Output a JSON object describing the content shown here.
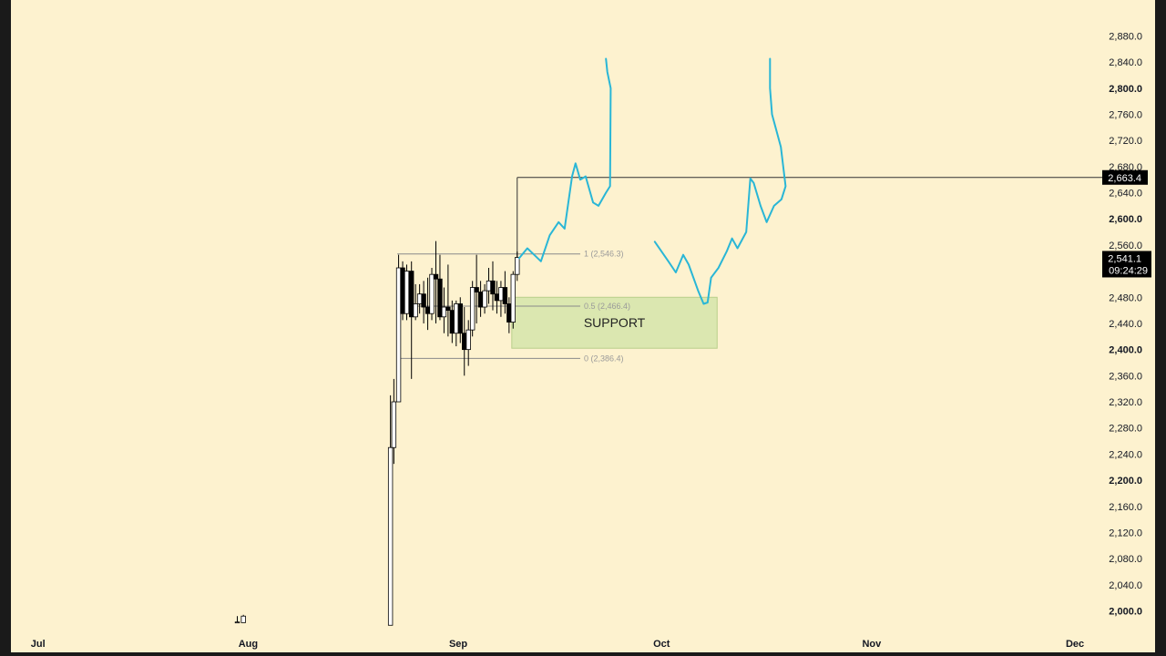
{
  "theme": {
    "frame": "#1a1a1a",
    "background": "#fdf2cf",
    "bull_fill": "#ffffff",
    "bear_fill": "#000000",
    "candle_stroke": "#000000",
    "projection": "#29b6d6",
    "support_fill": "#cfe3a6",
    "fib_line": "#8a8a8a",
    "fib_text": "#9a9a9a",
    "price_tag_bg": "#000000",
    "price_tag_text": "#ffffff"
  },
  "chart_data": {
    "type": "candlestick",
    "instrument_unit": "price",
    "y_range": [
      1970,
      2935
    ],
    "x_range_days": [
      0,
      164
    ],
    "x_axis": {
      "start_date": "2024-06-27",
      "ticks": [
        {
          "label": "Jul",
          "day": 4
        },
        {
          "label": "Aug",
          "day": 35
        },
        {
          "label": "Sep",
          "day": 66
        },
        {
          "label": "Oct",
          "day": 96
        },
        {
          "label": "Nov",
          "day": 127
        },
        {
          "label": "Dec",
          "day": 157
        }
      ]
    },
    "y_axis": {
      "ticks": [
        {
          "label": "2,000.0",
          "value": 2000,
          "bold": true
        },
        {
          "label": "2,040.0",
          "value": 2040,
          "bold": false
        },
        {
          "label": "2,080.0",
          "value": 2080,
          "bold": false
        },
        {
          "label": "2,120.0",
          "value": 2120,
          "bold": false
        },
        {
          "label": "2,160.0",
          "value": 2160,
          "bold": false
        },
        {
          "label": "2,200.0",
          "value": 2200,
          "bold": true
        },
        {
          "label": "2,240.0",
          "value": 2240,
          "bold": false
        },
        {
          "label": "2,280.0",
          "value": 2280,
          "bold": false
        },
        {
          "label": "2,320.0",
          "value": 2320,
          "bold": false
        },
        {
          "label": "2,360.0",
          "value": 2360,
          "bold": false
        },
        {
          "label": "2,400.0",
          "value": 2400,
          "bold": true
        },
        {
          "label": "2,440.0",
          "value": 2440,
          "bold": false
        },
        {
          "label": "2,480.0",
          "value": 2480,
          "bold": false
        },
        {
          "label": "2,520.0",
          "value": 2520,
          "bold": false
        },
        {
          "label": "2,560.0",
          "value": 2560,
          "bold": false
        },
        {
          "label": "2,600.0",
          "value": 2600,
          "bold": true
        },
        {
          "label": "2,640.0",
          "value": 2640,
          "bold": false
        },
        {
          "label": "2,680.0",
          "value": 2680,
          "bold": false
        },
        {
          "label": "2,720.0",
          "value": 2720,
          "bold": false
        },
        {
          "label": "2,760.0",
          "value": 2760,
          "bold": false
        },
        {
          "label": "2,800.0",
          "value": 2800,
          "bold": true
        },
        {
          "label": "2,840.0",
          "value": 2840,
          "bold": false
        },
        {
          "label": "2,880.0",
          "value": 2880,
          "bold": false
        }
      ]
    },
    "candles": [
      {
        "day": 33.4,
        "o": 1982,
        "h": 1992,
        "l": 1982,
        "c": 1983
      },
      {
        "day": 34.3,
        "o": 1982,
        "h": 1994,
        "l": 1982,
        "c": 1992
      },
      {
        "day": 56.0,
        "o": 1955,
        "h": 2330,
        "l": 1955,
        "c": 2250
      },
      {
        "day": 56.5,
        "o": 2250,
        "h": 2355,
        "l": 2225,
        "c": 2320
      },
      {
        "day": 57.2,
        "o": 2320,
        "h": 2545,
        "l": 2320,
        "c": 2525
      },
      {
        "day": 57.8,
        "o": 2525,
        "h": 2535,
        "l": 2445,
        "c": 2455
      },
      {
        "day": 58.4,
        "o": 2455,
        "h": 2530,
        "l": 2445,
        "c": 2520
      },
      {
        "day": 59.1,
        "o": 2520,
        "h": 2535,
        "l": 2355,
        "c": 2450
      },
      {
        "day": 59.7,
        "o": 2450,
        "h": 2500,
        "l": 2445,
        "c": 2470
      },
      {
        "day": 60.3,
        "o": 2470,
        "h": 2500,
        "l": 2455,
        "c": 2485
      },
      {
        "day": 60.9,
        "o": 2485,
        "h": 2505,
        "l": 2440,
        "c": 2465
      },
      {
        "day": 61.5,
        "o": 2465,
        "h": 2510,
        "l": 2430,
        "c": 2455
      },
      {
        "day": 62.1,
        "o": 2455,
        "h": 2525,
        "l": 2445,
        "c": 2515
      },
      {
        "day": 62.7,
        "o": 2515,
        "h": 2566,
        "l": 2440,
        "c": 2508
      },
      {
        "day": 63.3,
        "o": 2508,
        "h": 2545,
        "l": 2445,
        "c": 2450
      },
      {
        "day": 63.9,
        "o": 2450,
        "h": 2495,
        "l": 2425,
        "c": 2465
      },
      {
        "day": 64.5,
        "o": 2465,
        "h": 2530,
        "l": 2420,
        "c": 2460
      },
      {
        "day": 65.1,
        "o": 2460,
        "h": 2475,
        "l": 2410,
        "c": 2425
      },
      {
        "day": 65.7,
        "o": 2425,
        "h": 2475,
        "l": 2405,
        "c": 2470
      },
      {
        "day": 66.3,
        "o": 2470,
        "h": 2480,
        "l": 2410,
        "c": 2425
      },
      {
        "day": 66.9,
        "o": 2425,
        "h": 2465,
        "l": 2360,
        "c": 2400
      },
      {
        "day": 67.5,
        "o": 2400,
        "h": 2445,
        "l": 2375,
        "c": 2430
      },
      {
        "day": 68.1,
        "o": 2430,
        "h": 2505,
        "l": 2420,
        "c": 2495
      },
      {
        "day": 68.7,
        "o": 2495,
        "h": 2545,
        "l": 2440,
        "c": 2488
      },
      {
        "day": 69.3,
        "o": 2488,
        "h": 2505,
        "l": 2450,
        "c": 2465
      },
      {
        "day": 69.9,
        "o": 2465,
        "h": 2500,
        "l": 2455,
        "c": 2490
      },
      {
        "day": 70.5,
        "o": 2490,
        "h": 2525,
        "l": 2470,
        "c": 2505
      },
      {
        "day": 71.1,
        "o": 2505,
        "h": 2535,
        "l": 2460,
        "c": 2485
      },
      {
        "day": 71.7,
        "o": 2485,
        "h": 2505,
        "l": 2455,
        "c": 2475
      },
      {
        "day": 72.3,
        "o": 2475,
        "h": 2505,
        "l": 2450,
        "c": 2495
      },
      {
        "day": 72.9,
        "o": 2495,
        "h": 2520,
        "l": 2455,
        "c": 2470
      },
      {
        "day": 73.5,
        "o": 2470,
        "h": 2480,
        "l": 2425,
        "c": 2442
      },
      {
        "day": 74.1,
        "o": 2442,
        "h": 2520,
        "l": 2432,
        "c": 2515
      },
      {
        "day": 74.7,
        "o": 2515,
        "h": 2550,
        "l": 2505,
        "c": 2541
      }
    ],
    "fib_levels": [
      {
        "label": "1 (2,546.3)",
        "value": 2546.3,
        "x_from_day": 57.0,
        "x_to_day": 84.0
      },
      {
        "label": "0.5 (2,466.4)",
        "value": 2466.4,
        "x_from_day": 57.0,
        "x_to_day": 84.0
      },
      {
        "label": "0 (2,386.4)",
        "value": 2386.4,
        "x_from_day": 57.0,
        "x_to_day": 84.0
      }
    ],
    "resistance": {
      "value": 2663.4,
      "from_day": 74.7,
      "label": "2,663.4"
    },
    "last_price": {
      "value": 2541.1,
      "label": "2,541.1",
      "countdown": "09:24:29"
    },
    "support_zone": {
      "label": "SUPPORT",
      "from_day": 73.9,
      "to_day": 104.2,
      "top": 2480,
      "bottom": 2402
    },
    "projections": [
      {
        "name": "",
        "points": [
          [
            75.0,
            2540
          ],
          [
            76.2,
            2555
          ],
          [
            77.2,
            2545
          ],
          [
            78.2,
            2535
          ],
          [
            79.5,
            2575
          ],
          [
            80.8,
            2595
          ],
          [
            81.7,
            2585
          ],
          [
            82.8,
            2665
          ],
          [
            83.3,
            2685
          ],
          [
            84.0,
            2660
          ],
          [
            84.8,
            2665
          ],
          [
            85.9,
            2625
          ],
          [
            86.7,
            2620
          ],
          [
            87.8,
            2640
          ],
          [
            88.4,
            2650
          ],
          [
            88.5,
            2800
          ],
          [
            88.0,
            2825
          ],
          [
            87.8,
            2845
          ]
        ]
      },
      {
        "name": "",
        "points": [
          [
            95.0,
            2565
          ],
          [
            97.0,
            2535
          ],
          [
            98.1,
            2518
          ],
          [
            99.2,
            2545
          ],
          [
            100.0,
            2530
          ],
          [
            101.4,
            2490
          ],
          [
            102.2,
            2470
          ],
          [
            102.8,
            2472
          ],
          [
            103.3,
            2510
          ],
          [
            104.4,
            2525
          ],
          [
            105.6,
            2550
          ],
          [
            106.4,
            2570
          ],
          [
            107.2,
            2555
          ],
          [
            108.5,
            2580
          ],
          [
            109.1,
            2662
          ],
          [
            109.6,
            2655
          ],
          [
            110.6,
            2620
          ],
          [
            111.5,
            2595
          ],
          [
            112.6,
            2620
          ],
          [
            113.7,
            2630
          ],
          [
            114.3,
            2650
          ],
          [
            113.6,
            2710
          ],
          [
            112.3,
            2760
          ],
          [
            112.0,
            2800
          ],
          [
            112.0,
            2845
          ]
        ]
      }
    ]
  }
}
